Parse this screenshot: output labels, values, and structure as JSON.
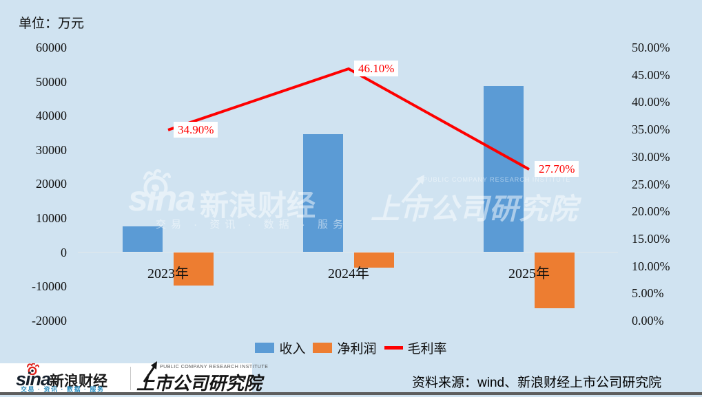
{
  "unit_label": "单位：万元",
  "legend": {
    "items": [
      {
        "label": "收入",
        "type": "bar",
        "color": "#5b9bd5"
      },
      {
        "label": "净利润",
        "type": "bar",
        "color": "#ed7d31"
      },
      {
        "label": "毛利率",
        "type": "line",
        "color": "#fe0000"
      }
    ]
  },
  "watermark": {
    "sina_word": "sina",
    "brand": "新浪财经",
    "tagline": "交易 · 资讯 · 数据 · 服务",
    "institute_en": "PUBLIC COMPANY RESEARCH INSTITUTE",
    "institute": "上市公司研究院"
  },
  "footer": {
    "sina_word": "sina",
    "sina_brand": "新浪财经",
    "sina_tagline": "交易 · 资讯 · 数据 · 服务",
    "institute_en": "PUBLIC COMPANY RESEARCH INSTITUTE",
    "institute": "上市公司研究院",
    "source": "资料来源：wind、新浪财经上市公司研究院"
  },
  "chart_data": {
    "type": "bar+line combo",
    "unit": "万元",
    "categories": [
      "2023年",
      "2024年",
      "2025年"
    ],
    "series": [
      {
        "name": "收入",
        "type": "bar",
        "axis": "left",
        "color": "#5b9bd5",
        "values": [
          7600,
          34600,
          48700
        ]
      },
      {
        "name": "净利润",
        "type": "bar",
        "axis": "left",
        "color": "#ed7d31",
        "values": [
          -9800,
          -4500,
          -16400
        ]
      },
      {
        "name": "毛利率",
        "type": "line",
        "axis": "right",
        "color": "#fe0000",
        "values": [
          34.9,
          46.1,
          27.7
        ],
        "point_labels": [
          "34.90%",
          "46.10%",
          "27.70%"
        ]
      }
    ],
    "left_axis": {
      "min": -20000,
      "max": 60000,
      "step": 10000,
      "tick_labels": [
        "60000",
        "50000",
        "40000",
        "30000",
        "20000",
        "10000",
        "0",
        "-10000",
        "-20000"
      ]
    },
    "right_axis": {
      "min": 0,
      "max": 50,
      "step": 5,
      "tick_labels": [
        "50.00%",
        "45.00%",
        "40.00%",
        "35.00%",
        "30.00%",
        "25.00%",
        "20.00%",
        "15.00%",
        "10.00%",
        "5.00%",
        "0.00%"
      ]
    },
    "grid": "zero-line only",
    "legend_position": "bottom-center",
    "background_color": "#d0e3f1"
  }
}
